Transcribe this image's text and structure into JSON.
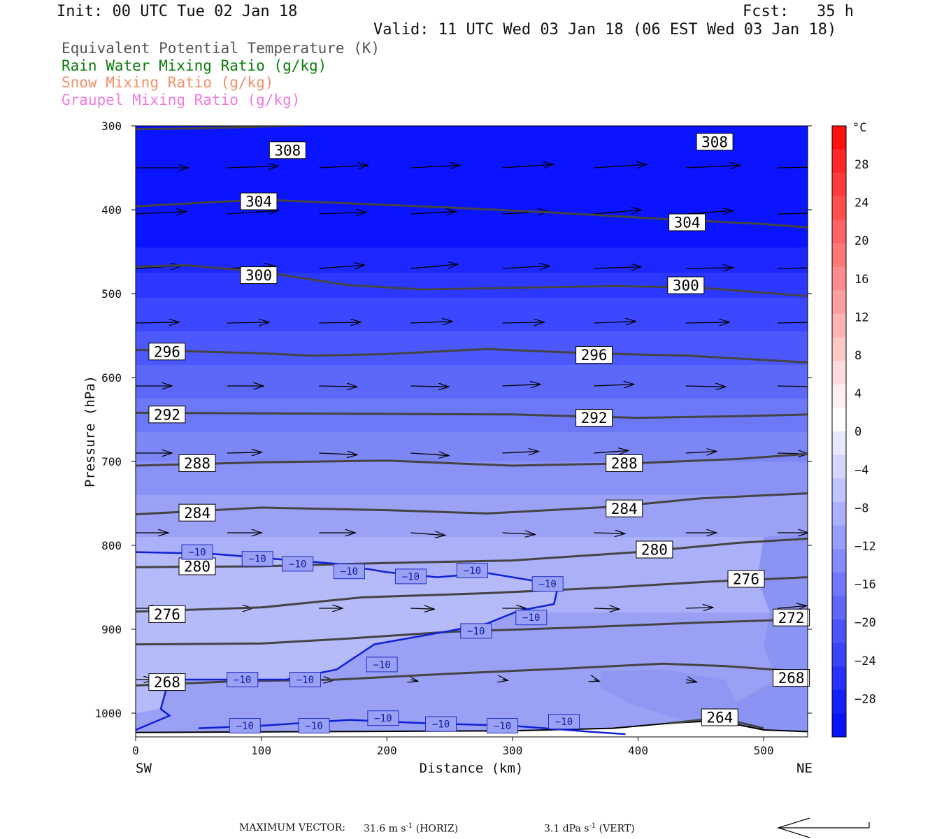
{
  "header": {
    "init": "Init: 00 UTC Tue 02 Jan 18",
    "fcst": "Fcst:   35 h",
    "valid": "Valid: 11 UTC Wed 03 Jan 18 (06 EST Wed 03 Jan 18)"
  },
  "legend": [
    {
      "label": "Equivalent Potential Temperature (K)",
      "color": "#555555"
    },
    {
      "label": "Rain Water Mixing Ratio (g/kg)",
      "color": "#0a7a0a"
    },
    {
      "label": "Snow Mixing Ratio (g/kg)",
      "color": "#f0906a"
    },
    {
      "label": "Graupel Mixing Ratio (g/kg)",
      "color": "#f07ae0"
    }
  ],
  "footer": {
    "max_vector_label": "MAXIMUM VECTOR:",
    "horiz_value": "31.6 m s",
    "horiz_exp": "-1",
    "horiz_tag": " (HORIZ)",
    "vert_value": "3.1 dPa s",
    "vert_exp": "-1",
    "vert_tag": " (VERT)"
  },
  "chart_data": {
    "type": "cross-section",
    "xlabel": "Distance (km)",
    "ylabel": "Pressure (hPa)",
    "xlim": [
      0,
      535
    ],
    "ylim": [
      1030,
      300
    ],
    "x_ticks": [
      0,
      100,
      200,
      300,
      400,
      500
    ],
    "y_ticks": [
      300,
      400,
      500,
      600,
      700,
      800,
      900,
      1000
    ],
    "x_end_labels": {
      "left": "SW",
      "right": "NE"
    },
    "colorbar": {
      "unit": "°C",
      "labels": [
        28,
        24,
        20,
        16,
        12,
        8,
        4,
        0,
        -4,
        -8,
        -12,
        -16,
        -20,
        -24,
        -28
      ]
    },
    "theta_e_contours": [
      {
        "value": 308,
        "points": [
          [
            0,
            304
          ],
          [
            50,
            303
          ],
          [
            120,
            300
          ],
          [
            180,
            297
          ],
          [
            250,
            294
          ],
          [
            330,
            292
          ],
          [
            420,
            292
          ],
          [
            500,
            294
          ],
          [
            535,
            295
          ]
        ],
        "labels": [
          [
            121,
            329
          ],
          [
            461,
            319
          ]
        ]
      },
      {
        "value": 304,
        "points": [
          [
            0,
            396
          ],
          [
            60,
            391
          ],
          [
            100,
            388
          ],
          [
            180,
            393
          ],
          [
            260,
            398
          ],
          [
            340,
            404
          ],
          [
            420,
            411
          ],
          [
            500,
            417
          ],
          [
            535,
            421
          ]
        ],
        "labels": [
          [
            98,
            390
          ],
          [
            439,
            415
          ]
        ]
      },
      {
        "value": 300,
        "points": [
          [
            0,
            468
          ],
          [
            40,
            466
          ],
          [
            100,
            474
          ],
          [
            170,
            490
          ],
          [
            230,
            495
          ],
          [
            300,
            493
          ],
          [
            380,
            491
          ],
          [
            450,
            493
          ],
          [
            535,
            503
          ]
        ],
        "labels": [
          [
            98,
            478
          ],
          [
            438,
            490
          ]
        ]
      },
      {
        "value": 296,
        "points": [
          [
            0,
            567
          ],
          [
            100,
            571
          ],
          [
            140,
            574
          ],
          [
            200,
            572
          ],
          [
            280,
            566
          ],
          [
            360,
            571
          ],
          [
            440,
            574
          ],
          [
            535,
            582
          ]
        ],
        "labels": [
          [
            25,
            569
          ],
          [
            365,
            573
          ]
        ]
      },
      {
        "value": 292,
        "points": [
          [
            0,
            642
          ],
          [
            150,
            643
          ],
          [
            300,
            644
          ],
          [
            400,
            648
          ],
          [
            480,
            646
          ],
          [
            535,
            644
          ]
        ],
        "labels": [
          [
            25,
            644
          ],
          [
            365,
            648
          ]
        ]
      },
      {
        "value": 288,
        "points": [
          [
            0,
            705
          ],
          [
            100,
            701
          ],
          [
            200,
            699
          ],
          [
            300,
            705
          ],
          [
            400,
            702
          ],
          [
            480,
            697
          ],
          [
            535,
            691
          ]
        ],
        "labels": [
          [
            49,
            702
          ],
          [
            389,
            702
          ]
        ]
      },
      {
        "value": 284,
        "points": [
          [
            0,
            763
          ],
          [
            100,
            755
          ],
          [
            200,
            758
          ],
          [
            280,
            762
          ],
          [
            380,
            754
          ],
          [
            450,
            744
          ],
          [
            535,
            738
          ]
        ],
        "labels": [
          [
            49,
            761
          ],
          [
            389,
            756
          ]
        ]
      },
      {
        "value": 280,
        "points": [
          [
            0,
            826
          ],
          [
            100,
            825
          ],
          [
            200,
            821
          ],
          [
            300,
            818
          ],
          [
            400,
            808
          ],
          [
            480,
            797
          ],
          [
            535,
            792
          ]
        ],
        "labels": [
          [
            49,
            825
          ],
          [
            413,
            805
          ]
        ]
      },
      {
        "value": 276,
        "points": [
          [
            0,
            879
          ],
          [
            100,
            874
          ],
          [
            180,
            862
          ],
          [
            280,
            857
          ],
          [
            380,
            850
          ],
          [
            460,
            843
          ],
          [
            535,
            838
          ]
        ],
        "labels": [
          [
            25,
            882
          ],
          [
            486,
            840
          ]
        ]
      },
      {
        "value": 272,
        "points": [
          [
            0,
            918
          ],
          [
            100,
            917
          ],
          [
            170,
            911
          ],
          [
            250,
            903
          ],
          [
            350,
            898
          ],
          [
            450,
            892
          ],
          [
            535,
            888
          ]
        ],
        "labels": [
          [
            522,
            886
          ]
        ]
      },
      {
        "value": 268,
        "points": [
          [
            0,
            967
          ],
          [
            80,
            962
          ],
          [
            160,
            960
          ],
          [
            250,
            953
          ],
          [
            340,
            947
          ],
          [
            420,
            941
          ],
          [
            470,
            944
          ],
          [
            535,
            951
          ]
        ],
        "labels": [
          [
            25,
            963
          ],
          [
            522,
            958
          ]
        ]
      },
      {
        "value": 264,
        "points": [
          [
            425,
            1012
          ],
          [
            450,
            1008
          ],
          [
            480,
            1011
          ],
          [
            500,
            1018
          ]
        ],
        "labels": [
          [
            465,
            1005
          ]
        ]
      }
    ],
    "temperature_contours": [
      {
        "value": -10,
        "points": [
          [
            0,
            808
          ],
          [
            60,
            810
          ],
          [
            110,
            816
          ],
          [
            160,
            822
          ],
          [
            200,
            832
          ],
          [
            240,
            838
          ],
          [
            280,
            833
          ],
          [
            320,
            843
          ],
          [
            336,
            851
          ],
          [
            333,
            870
          ],
          [
            305,
            878
          ],
          [
            280,
            893
          ],
          [
            250,
            902
          ],
          [
            190,
            918
          ],
          [
            160,
            948
          ],
          [
            120,
            960
          ],
          [
            80,
            960
          ],
          [
            40,
            960
          ],
          [
            25,
            968
          ],
          [
            20,
            995
          ],
          [
            27,
            1003
          ],
          [
            0,
            1020
          ]
        ],
        "labels": [
          [
            49,
            808
          ],
          [
            97,
            816
          ],
          [
            129,
            822
          ],
          [
            170,
            831
          ],
          [
            219,
            837
          ],
          [
            268,
            830
          ],
          [
            328,
            846
          ],
          [
            315,
            886
          ],
          [
            271,
            902
          ],
          [
            196,
            942
          ],
          [
            85,
            960
          ],
          [
            135,
            960
          ]
        ]
      },
      {
        "value": -10,
        "points": [
          [
            50,
            1018
          ],
          [
            100,
            1015
          ],
          [
            170,
            1008
          ],
          [
            230,
            1012
          ],
          [
            300,
            1015
          ],
          [
            360,
            1022
          ],
          [
            390,
            1025
          ]
        ],
        "labels": [
          [
            87,
            1015
          ],
          [
            142,
            1015
          ],
          [
            197,
            1006
          ],
          [
            243,
            1013
          ],
          [
            292,
            1015
          ],
          [
            341,
            1010
          ]
        ]
      }
    ],
    "temperature_contour_labels": [
      -10
    ],
    "wind_vectors": [
      {
        "p": 350,
        "x": [
          0,
          73,
          146,
          219,
          292,
          365,
          438,
          511
        ],
        "u": [
          29,
          28,
          27,
          27,
          28,
          29,
          30,
          29
        ],
        "w": [
          0,
          0.2,
          0.3,
          0.3,
          0.4,
          0.4,
          0.3,
          0.1
        ]
      },
      {
        "p": 405,
        "x": [
          0,
          73,
          146,
          219,
          292,
          365,
          438,
          511
        ],
        "u": [
          28,
          28,
          26,
          25,
          25,
          26,
          26,
          26
        ],
        "w": [
          0.3,
          0.4,
          0.2,
          0.3,
          0.3,
          0.5,
          0.4,
          0.1
        ]
      },
      {
        "p": 470,
        "x": [
          0,
          73,
          146,
          219,
          292,
          365,
          438,
          511
        ],
        "u": [
          25,
          26,
          25,
          26,
          26,
          26,
          26,
          25
        ],
        "w": [
          0.3,
          0.3,
          0.4,
          0.5,
          0.3,
          0.2,
          0.1,
          0.1
        ]
      },
      {
        "p": 535,
        "x": [
          0,
          73,
          146,
          219,
          292,
          365,
          438,
          511
        ],
        "u": [
          24,
          23,
          23,
          23,
          23,
          23,
          24,
          25
        ],
        "w": [
          0.1,
          0.1,
          0.1,
          0.2,
          0.1,
          0.2,
          0.1,
          0.1
        ]
      },
      {
        "p": 610,
        "x": [
          0,
          73,
          146,
          219,
          292,
          365,
          438,
          511
        ],
        "u": [
          20,
          20,
          21,
          21,
          21,
          22,
          22,
          23
        ],
        "w": [
          0,
          0,
          -0.1,
          -0.1,
          0.2,
          0.2,
          -0.1,
          -0.1
        ]
      },
      {
        "p": 690,
        "x": [
          0,
          73,
          146,
          219,
          292,
          365,
          438,
          511
        ],
        "u": [
          20,
          19,
          21,
          21,
          20,
          19,
          17,
          17
        ],
        "w": [
          0,
          0.1,
          -0.2,
          -0.3,
          0.2,
          0.3,
          0.2,
          -0.1
        ]
      },
      {
        "p": 785,
        "x": [
          0,
          73,
          146,
          219,
          292,
          365,
          438,
          511
        ],
        "u": [
          18,
          19,
          20,
          19,
          18,
          17,
          17,
          17
        ],
        "w": [
          0,
          0,
          0,
          -0.3,
          -0.2,
          -0.1,
          0,
          0
        ]
      },
      {
        "p": 875,
        "x": [
          0,
          73,
          146,
          219,
          292,
          365,
          438,
          511
        ],
        "u": [
          14,
          14,
          13,
          13,
          13,
          14,
          15,
          16
        ],
        "w": [
          0,
          0,
          0,
          -0.1,
          0,
          -0.1,
          0.1,
          0.3
        ]
      },
      {
        "p": 960,
        "x": [
          0,
          73,
          146,
          219,
          292,
          365,
          438,
          511
        ],
        "u": [
          10,
          10,
          8,
          4,
          3,
          3,
          6,
          4
        ],
        "w": [
          0,
          0,
          -0.1,
          -0.2,
          -0.1,
          -0.2,
          -0.3,
          0
        ]
      }
    ]
  }
}
